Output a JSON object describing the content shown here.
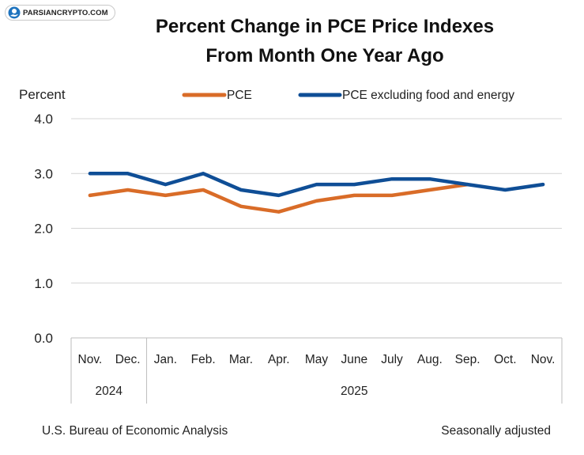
{
  "watermark": {
    "text": "PARSIANCRYPTO.COM",
    "icon": "blue-bitcoin-hand-icon"
  },
  "chart_data": {
    "type": "line",
    "title": [
      "Percent Change in PCE Price Indexes",
      "From Month One Year Ago"
    ],
    "ylabel": "Percent",
    "xlabel": "",
    "categories": [
      "Nov.",
      "Dec.",
      "Jan.",
      "Feb.",
      "Mar.",
      "Apr.",
      "May",
      "June",
      "July",
      "Aug.",
      "Sep.",
      "Oct.",
      "Nov."
    ],
    "years": [
      {
        "label": "2024",
        "span": [
          0,
          1
        ]
      },
      {
        "label": "2025",
        "span": [
          2,
          12
        ]
      }
    ],
    "ylim": [
      0,
      4
    ],
    "yticks": [
      "4.0",
      "3.0",
      "2.0",
      "1.0",
      "0.0"
    ],
    "grid": true,
    "legend_position": "top",
    "series": [
      {
        "name": "PCE",
        "color": "#d96c28",
        "values": [
          2.6,
          2.7,
          2.6,
          2.7,
          2.4,
          2.3,
          2.5,
          2.6,
          2.6,
          2.7,
          2.8,
          null,
          null
        ]
      },
      {
        "name": "PCE excluding food and energy",
        "color": "#0f4e96",
        "values": [
          3.0,
          3.0,
          2.8,
          3.0,
          2.7,
          2.6,
          2.8,
          2.8,
          2.9,
          2.9,
          2.8,
          2.7,
          2.8
        ]
      }
    ],
    "source": "U.S. Bureau of Economic Analysis",
    "note": "Seasonally adjusted"
  }
}
